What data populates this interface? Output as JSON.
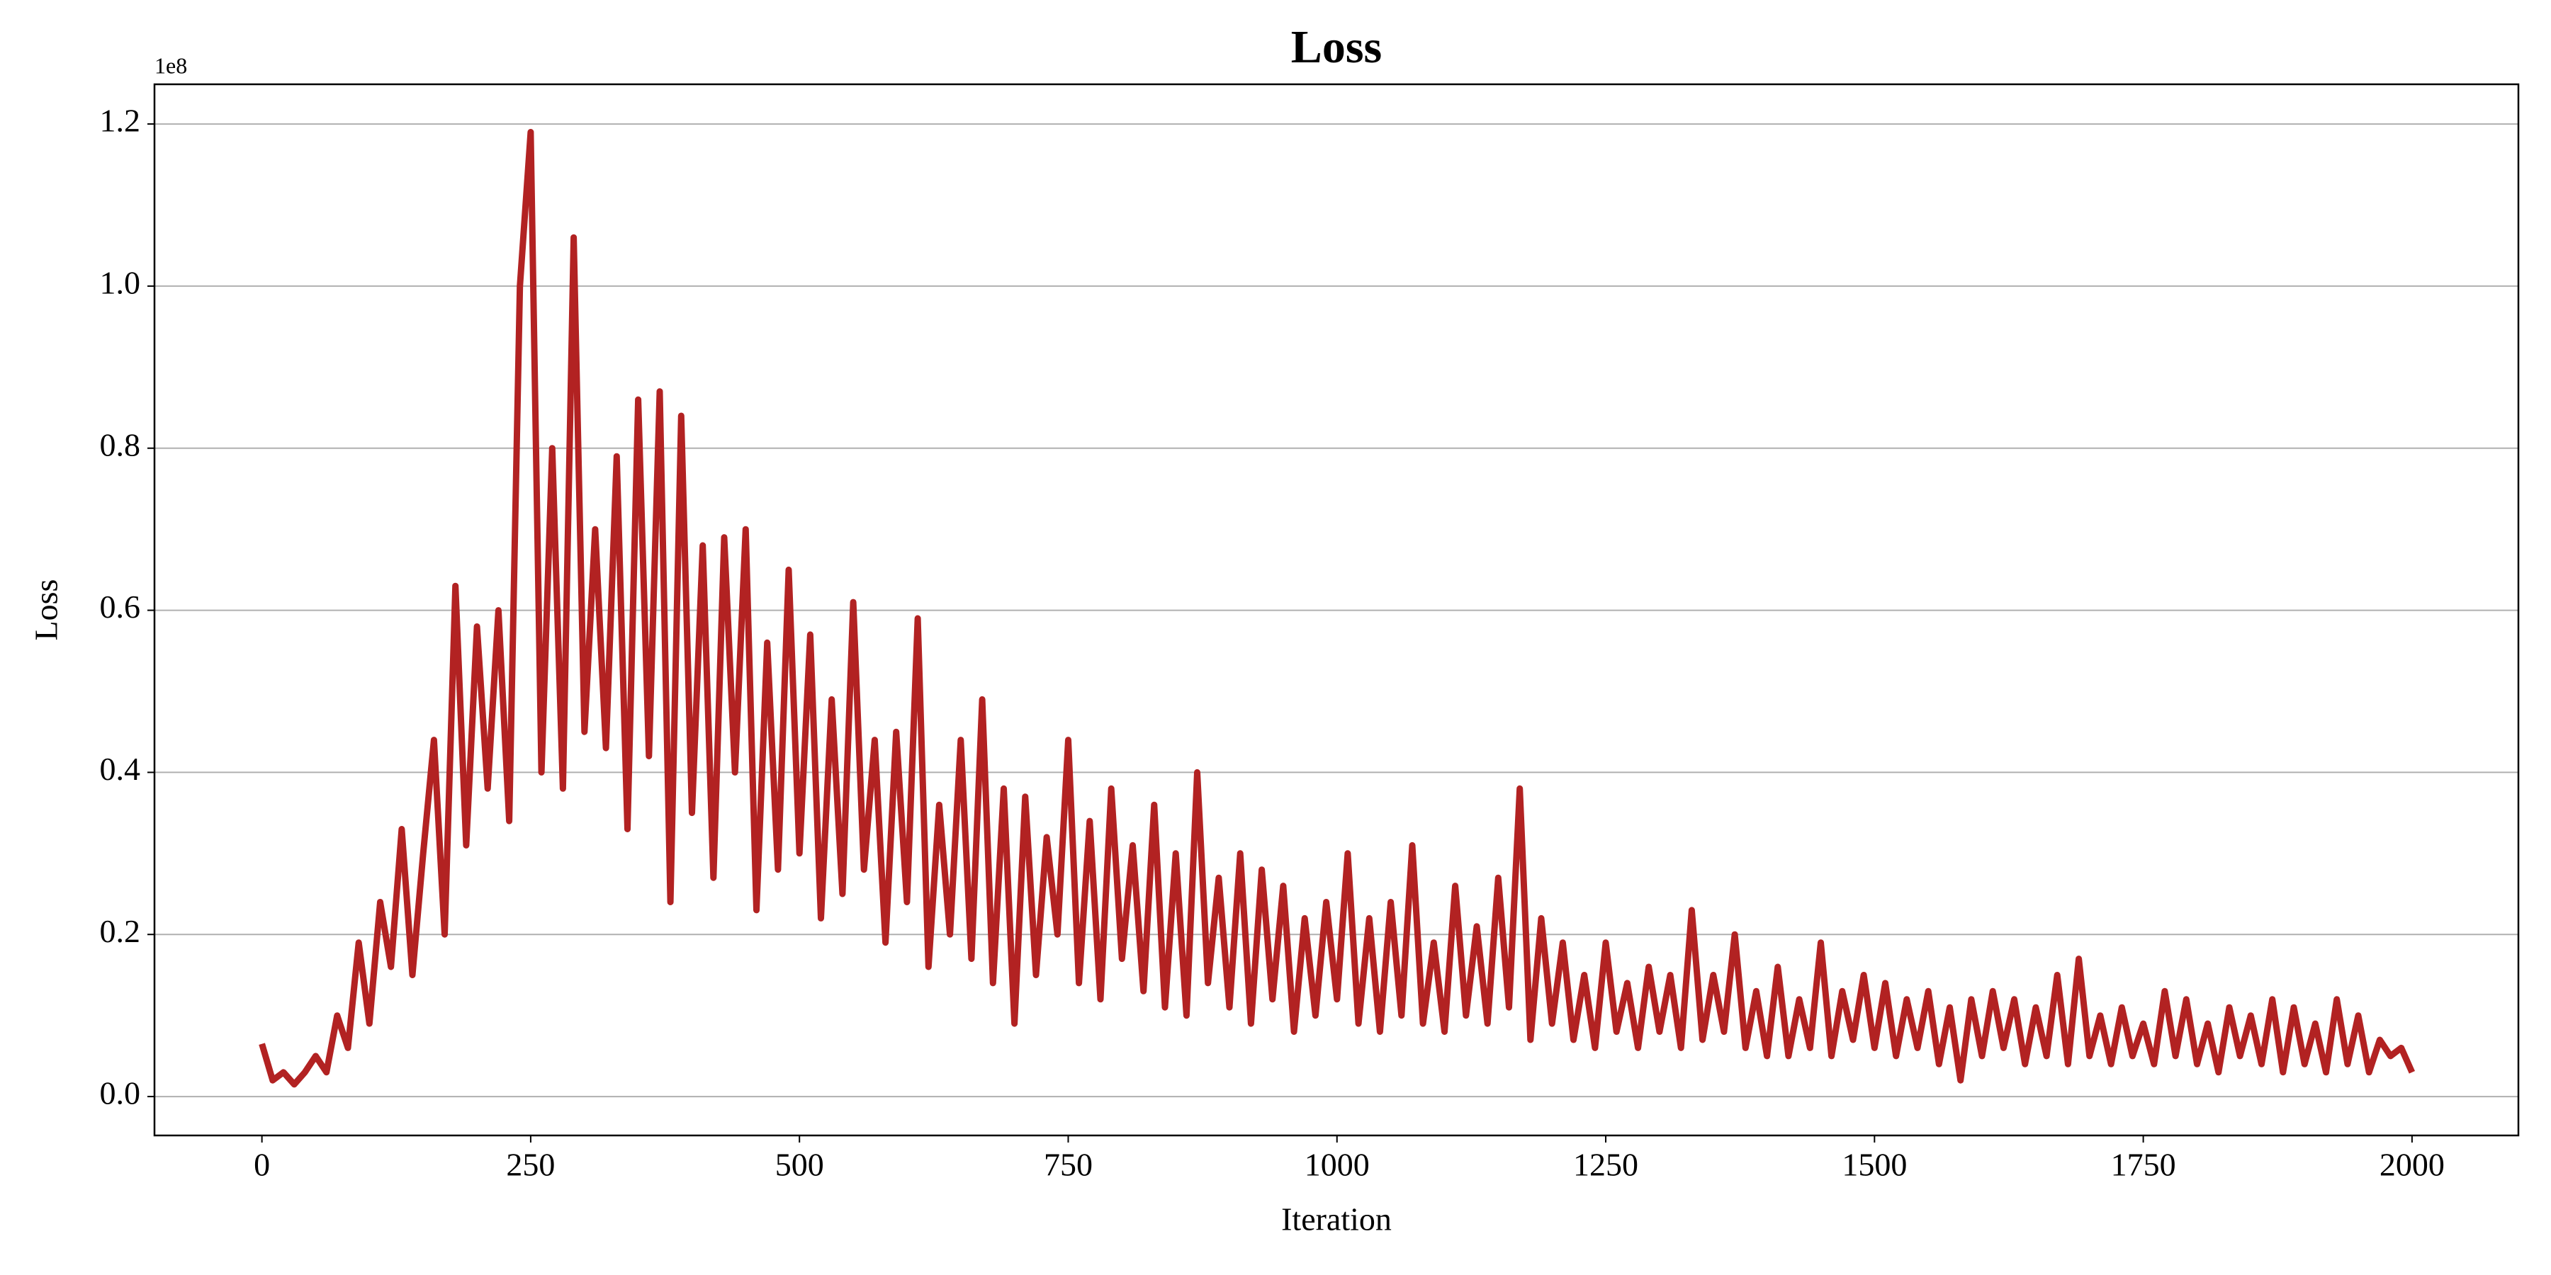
{
  "chart_data": {
    "type": "line",
    "title": "Loss",
    "x_label": "Iteration",
    "y_label": "Loss",
    "y_offset_text": "1e8",
    "x": [
      0,
      10,
      20,
      30,
      40,
      50,
      60,
      70,
      80,
      90,
      100,
      110,
      120,
      130,
      140,
      150,
      160,
      170,
      180,
      190,
      200,
      210,
      220,
      230,
      240,
      250,
      260,
      270,
      280,
      290,
      300,
      310,
      320,
      330,
      340,
      350,
      360,
      370,
      380,
      390,
      400,
      410,
      420,
      430,
      440,
      450,
      460,
      470,
      480,
      490,
      500,
      510,
      520,
      530,
      540,
      550,
      560,
      570,
      580,
      590,
      600,
      610,
      620,
      630,
      640,
      650,
      660,
      670,
      680,
      690,
      700,
      710,
      720,
      730,
      740,
      750,
      760,
      770,
      780,
      790,
      800,
      810,
      820,
      830,
      840,
      850,
      860,
      870,
      880,
      890,
      900,
      910,
      920,
      930,
      940,
      950,
      960,
      970,
      980,
      990,
      1000,
      1010,
      1020,
      1030,
      1040,
      1050,
      1060,
      1070,
      1080,
      1090,
      1100,
      1110,
      1120,
      1130,
      1140,
      1150,
      1160,
      1170,
      1180,
      1190,
      1200,
      1210,
      1220,
      1230,
      1240,
      1250,
      1260,
      1270,
      1280,
      1290,
      1300,
      1310,
      1320,
      1330,
      1340,
      1350,
      1360,
      1370,
      1380,
      1390,
      1400,
      1410,
      1420,
      1430,
      1440,
      1450,
      1460,
      1470,
      1480,
      1490,
      1500,
      1510,
      1520,
      1530,
      1540,
      1550,
      1560,
      1570,
      1580,
      1590,
      1600,
      1610,
      1620,
      1630,
      1640,
      1650,
      1660,
      1670,
      1680,
      1690,
      1700,
      1710,
      1720,
      1730,
      1740,
      1750,
      1760,
      1770,
      1780,
      1790,
      1800,
      1810,
      1820,
      1830,
      1840,
      1850,
      1860,
      1870,
      1880,
      1890,
      1900,
      1910,
      1920,
      1930,
      1940,
      1950,
      1960,
      1970,
      1980,
      1990,
      2000
    ],
    "series": [
      {
        "name": "Loss",
        "color": "#b22222",
        "values": [
          0.065,
          0.02,
          0.03,
          0.015,
          0.03,
          0.05,
          0.03,
          0.1,
          0.06,
          0.19,
          0.09,
          0.24,
          0.16,
          0.33,
          0.15,
          0.3,
          0.44,
          0.2,
          0.63,
          0.31,
          0.58,
          0.38,
          0.6,
          0.34,
          1.0,
          1.19,
          0.4,
          0.8,
          0.38,
          1.06,
          0.45,
          0.7,
          0.43,
          0.79,
          0.33,
          0.86,
          0.42,
          0.87,
          0.24,
          0.84,
          0.35,
          0.68,
          0.27,
          0.69,
          0.4,
          0.7,
          0.23,
          0.56,
          0.28,
          0.65,
          0.3,
          0.57,
          0.22,
          0.49,
          0.25,
          0.61,
          0.28,
          0.44,
          0.19,
          0.45,
          0.24,
          0.59,
          0.16,
          0.36,
          0.2,
          0.44,
          0.17,
          0.49,
          0.14,
          0.38,
          0.09,
          0.37,
          0.15,
          0.32,
          0.2,
          0.44,
          0.14,
          0.34,
          0.12,
          0.38,
          0.17,
          0.31,
          0.13,
          0.36,
          0.11,
          0.3,
          0.1,
          0.4,
          0.14,
          0.27,
          0.11,
          0.3,
          0.09,
          0.28,
          0.12,
          0.26,
          0.08,
          0.22,
          0.1,
          0.24,
          0.12,
          0.3,
          0.09,
          0.22,
          0.08,
          0.24,
          0.1,
          0.31,
          0.09,
          0.19,
          0.08,
          0.26,
          0.1,
          0.21,
          0.09,
          0.27,
          0.11,
          0.38,
          0.07,
          0.22,
          0.09,
          0.19,
          0.07,
          0.15,
          0.06,
          0.19,
          0.08,
          0.14,
          0.06,
          0.16,
          0.08,
          0.15,
          0.06,
          0.23,
          0.07,
          0.15,
          0.08,
          0.2,
          0.06,
          0.13,
          0.05,
          0.16,
          0.05,
          0.12,
          0.06,
          0.19,
          0.05,
          0.13,
          0.07,
          0.15,
          0.06,
          0.14,
          0.05,
          0.12,
          0.06,
          0.13,
          0.04,
          0.11,
          0.02,
          0.12,
          0.05,
          0.13,
          0.06,
          0.12,
          0.04,
          0.11,
          0.05,
          0.15,
          0.04,
          0.17,
          0.05,
          0.1,
          0.04,
          0.11,
          0.05,
          0.09,
          0.04,
          0.13,
          0.05,
          0.12,
          0.04,
          0.09,
          0.03,
          0.11,
          0.05,
          0.1,
          0.04,
          0.12,
          0.03,
          0.11,
          0.04,
          0.09,
          0.03,
          0.12,
          0.04,
          0.1,
          0.03,
          0.07,
          0.05,
          0.06,
          0.03
        ]
      }
    ],
    "xlim": [
      -99.95,
      2098.95
    ],
    "ylim": [
      -0.048,
      1.249
    ],
    "xticks": [
      0,
      250,
      500,
      750,
      1000,
      1250,
      1500,
      1750,
      2000
    ],
    "yticks": [
      {
        "value": 0,
        "label": "0.0"
      },
      0.2,
      0.4,
      0.6,
      0.8,
      {
        "value": 1,
        "label": "1.0"
      },
      1.2
    ],
    "grid": "y"
  }
}
